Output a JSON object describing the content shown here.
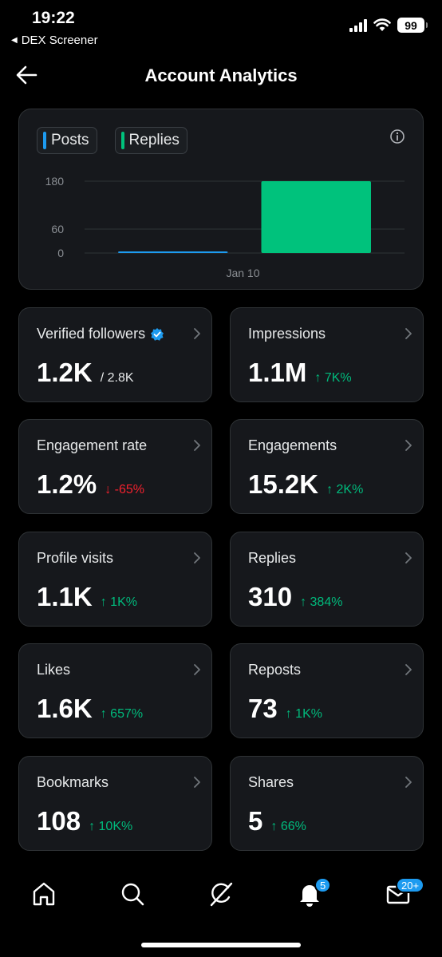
{
  "status_bar": {
    "time": "19:22",
    "back_app": "DEX Screener",
    "battery": "99"
  },
  "header": {
    "title": "Account Analytics",
    "back_icon": "back-arrow-icon"
  },
  "chart_data": {
    "type": "bar",
    "categories": [
      "Jan 10"
    ],
    "series": [
      {
        "name": "Posts",
        "values": [
          1
        ],
        "color": "#1d9bf0"
      },
      {
        "name": "Replies",
        "values": [
          182
        ],
        "color": "#00c27c"
      }
    ],
    "yticks": [
      "180",
      "60",
      "0"
    ],
    "ylim": [
      0,
      180
    ],
    "grid": true,
    "legend_placement": "top-left"
  },
  "metrics": [
    {
      "label": "Verified followers",
      "value": "1.2K",
      "sub": "/ 2.8K",
      "change": "",
      "direction": "",
      "verified": true
    },
    {
      "label": "Impressions",
      "value": "1.1M",
      "sub": "",
      "change": "7K%",
      "direction": "up",
      "verified": false
    },
    {
      "label": "Engagement rate",
      "value": "1.2%",
      "sub": "",
      "change": "-65%",
      "direction": "down",
      "verified": false
    },
    {
      "label": "Engagements",
      "value": "15.2K",
      "sub": "",
      "change": "2K%",
      "direction": "up",
      "verified": false
    },
    {
      "label": "Profile visits",
      "value": "1.1K",
      "sub": "",
      "change": "1K%",
      "direction": "up",
      "verified": false
    },
    {
      "label": "Replies",
      "value": "310",
      "sub": "",
      "change": "384%",
      "direction": "up",
      "verified": false
    },
    {
      "label": "Likes",
      "value": "1.6K",
      "sub": "",
      "change": "657%",
      "direction": "up",
      "verified": false
    },
    {
      "label": "Reposts",
      "value": "73",
      "sub": "",
      "change": "1K%",
      "direction": "up",
      "verified": false
    },
    {
      "label": "Bookmarks",
      "value": "108",
      "sub": "",
      "change": "10K%",
      "direction": "up",
      "verified": false
    },
    {
      "label": "Shares",
      "value": "5",
      "sub": "",
      "change": "66%",
      "direction": "up",
      "verified": false
    }
  ],
  "arrows": {
    "up": "↑",
    "down": "↓"
  },
  "bottom_nav": {
    "items": [
      "home-icon",
      "search-icon",
      "grok-icon",
      "bell-icon",
      "mail-icon"
    ],
    "notifications_badge": "5",
    "messages_badge": "20+"
  }
}
